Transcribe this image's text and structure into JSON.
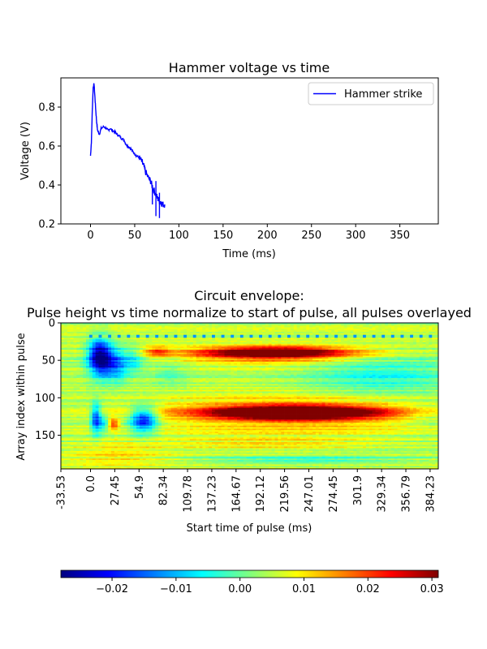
{
  "chart_data": [
    {
      "type": "line",
      "title": "Hammer voltage vs time",
      "xlabel": "Time (ms)",
      "ylabel": "Voltage (V)",
      "xlim": [
        -33.53,
        393.5
      ],
      "ylim": [
        0.2,
        0.95
      ],
      "xticks": [
        0,
        50,
        100,
        150,
        200,
        250,
        300,
        350
      ],
      "xtick_labels": [
        "0",
        "50",
        "100",
        "150",
        "200",
        "250",
        "300",
        "350"
      ],
      "yticks": [
        0.2,
        0.4,
        0.6,
        0.8
      ],
      "ytick_labels": [
        "0.2",
        "0.4",
        "0.6",
        "0.8"
      ],
      "legend": "top-right",
      "grid": false,
      "series": [
        {
          "name": "Hammer strike",
          "color": "#0000ff",
          "x": [
            0,
            1,
            2,
            3,
            4,
            5,
            6,
            7,
            8,
            10,
            12,
            15,
            18,
            20,
            22,
            25,
            28,
            30,
            33,
            35,
            38,
            40,
            42,
            45,
            48,
            50,
            52,
            55,
            58,
            60,
            62,
            65,
            68,
            70,
            72,
            74,
            76,
            78,
            80,
            82,
            84
          ],
          "y": [
            0.55,
            0.62,
            0.78,
            0.9,
            0.92,
            0.85,
            0.78,
            0.72,
            0.68,
            0.66,
            0.69,
            0.7,
            0.69,
            0.68,
            0.69,
            0.68,
            0.67,
            0.66,
            0.65,
            0.64,
            0.63,
            0.61,
            0.6,
            0.59,
            0.57,
            0.56,
            0.55,
            0.54,
            0.52,
            0.5,
            0.47,
            0.44,
            0.42,
            0.39,
            0.37,
            0.35,
            0.33,
            0.32,
            0.31,
            0.3,
            0.3
          ]
        }
      ]
    },
    {
      "type": "heatmap",
      "title_line1": "Circuit envelope:",
      "title_line2": "Pulse height vs time normalize to start of pulse, all pulses overlayed",
      "xlabel": "Start time of pulse (ms)",
      "ylabel": "Array index within pulse",
      "xlim": [
        -33.53,
        393.5
      ],
      "ylim": [
        0,
        195
      ],
      "xticks": [
        -33.53,
        0.0,
        27.45,
        54.9,
        82.34,
        109.78,
        137.23,
        164.67,
        192.12,
        219.56,
        247.01,
        274.45,
        301.9,
        329.34,
        356.79,
        384.23
      ],
      "xtick_labels": [
        "-33.53",
        "0.0",
        "27.45",
        "54.9",
        "82.34",
        "109.78",
        "137.23",
        "164.67",
        "192.12",
        "219.56",
        "247.01",
        "274.45",
        "301.9",
        "329.34",
        "356.79",
        "384.23"
      ],
      "yticks": [
        0,
        50,
        100,
        150
      ],
      "ytick_labels": [
        "0",
        "50",
        "100",
        "150"
      ],
      "colormap": "jet",
      "vmin": -0.028,
      "vmax": 0.031,
      "baseline": 0.004,
      "features": [
        {
          "t": 10,
          "idx": 45,
          "st": 9,
          "si": 17,
          "v": -0.032
        },
        {
          "t": 28,
          "idx": 55,
          "st": 11,
          "si": 16,
          "v": -0.018
        },
        {
          "t": 50,
          "idx": 50,
          "st": 8,
          "si": 12,
          "v": -0.008
        },
        {
          "t": 6,
          "idx": 128,
          "st": 4,
          "si": 14,
          "v": -0.022
        },
        {
          "t": 15,
          "idx": 135,
          "st": 5,
          "si": 9,
          "v": -0.01
        },
        {
          "t": 26,
          "idx": 135,
          "st": 4,
          "si": 5,
          "v": 0.016
        },
        {
          "t": 60,
          "idx": 130,
          "st": 11,
          "si": 12,
          "v": -0.026
        },
        {
          "t": 90,
          "idx": 70,
          "st": 15,
          "si": 12,
          "v": -0.005
        },
        {
          "t": 75,
          "idx": 38,
          "st": 10,
          "si": 5,
          "v": 0.012
        },
        {
          "t": 210,
          "idx": 39,
          "st": 55,
          "si": 5,
          "v": 0.03
        },
        {
          "t": 200,
          "idx": 45,
          "st": 75,
          "si": 8,
          "v": 0.013
        },
        {
          "t": 230,
          "idx": 120,
          "st": 62,
          "si": 6,
          "v": 0.04
        },
        {
          "t": 230,
          "idx": 120,
          "st": 115,
          "si": 15,
          "v": 0.014
        },
        {
          "t": 330,
          "idx": 72,
          "st": 60,
          "si": 18,
          "v": -0.009
        },
        {
          "t": 380,
          "idx": 125,
          "st": 20,
          "si": 12,
          "v": -0.004
        },
        {
          "t": 200,
          "idx": 160,
          "st": 80,
          "si": 8,
          "v": 0.006
        },
        {
          "t": 240,
          "idx": 183,
          "st": 80,
          "si": 4,
          "v": -0.008
        },
        {
          "t": 30,
          "idx": 175,
          "st": 40,
          "si": 12,
          "v": 0.006
        }
      ]
    }
  ],
  "colorbar": {
    "ticks": [
      -0.02,
      -0.01,
      0.0,
      0.01,
      0.02,
      0.03
    ],
    "tick_labels": [
      "−0.02",
      "−0.01",
      "0.00",
      "0.01",
      "0.02",
      "0.03"
    ]
  }
}
